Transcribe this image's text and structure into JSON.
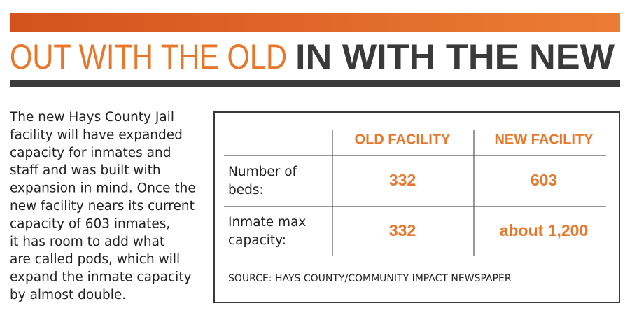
{
  "header": {
    "title_old": "OUT WITH THE OLD",
    "title_new": "IN WITH THE NEW"
  },
  "body_lines": [
    "The new Hays County Jail",
    "facility will have expanded",
    "capacity for inmates and",
    "staff and was built with",
    "expansion in mind. Once the",
    "new facility nears its current",
    "capacity of 603 inmates,",
    "it has room to add what",
    "are called pods, which will",
    "expand the inmate capacity",
    "by almost double."
  ],
  "table": {
    "columns": [
      "OLD FACILITY",
      "NEW FACILITY"
    ],
    "rows": [
      {
        "label": [
          "Number of",
          "beds:"
        ],
        "cells": [
          332,
          603
        ]
      },
      {
        "label": [
          "Inmate max",
          "capacity:"
        ],
        "cells": [
          332,
          "about 1,200"
        ]
      }
    ],
    "source": "SOURCE: HAYS COUNTY/COMMUNITY IMPACT NEWSPAPER"
  }
}
